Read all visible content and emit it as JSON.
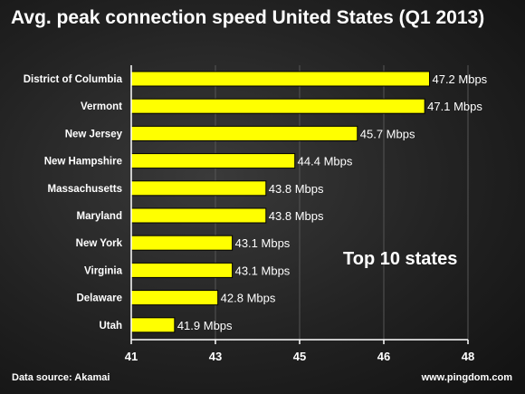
{
  "chart_data": {
    "type": "bar",
    "orientation": "horizontal",
    "title": "Avg. peak connection speed United States (Q1 2013)",
    "categories": [
      "District of Columbia",
      "Vermont",
      "New Jersey",
      "New Hampshire",
      "Massachusetts",
      "Maryland",
      "New York",
      "Virginia",
      "Delaware",
      "Utah"
    ],
    "values": [
      47.2,
      47.1,
      45.7,
      44.4,
      43.8,
      43.8,
      43.1,
      43.1,
      42.8,
      41.9
    ],
    "data_labels": [
      "47.2 Mbps",
      "47.1 Mbps",
      "45.7 Mbps",
      "44.4 Mbps",
      "43.8 Mbps",
      "43.8 Mbps",
      "43.1 Mbps",
      "43.1 Mbps",
      "42.8 Mbps",
      "41.9 Mbps"
    ],
    "xlim": [
      41,
      48
    ],
    "xticks": [
      "41",
      "43",
      "45",
      "46",
      "48"
    ],
    "xtick_values": [
      41,
      42.75,
      44.5,
      46.25,
      48
    ],
    "annotation": "Top 10 states",
    "bar_color": "#ffff00",
    "xlabel": "",
    "ylabel": ""
  },
  "footer": {
    "source": "Data source: Akamai",
    "site": "www.pingdom.com"
  }
}
